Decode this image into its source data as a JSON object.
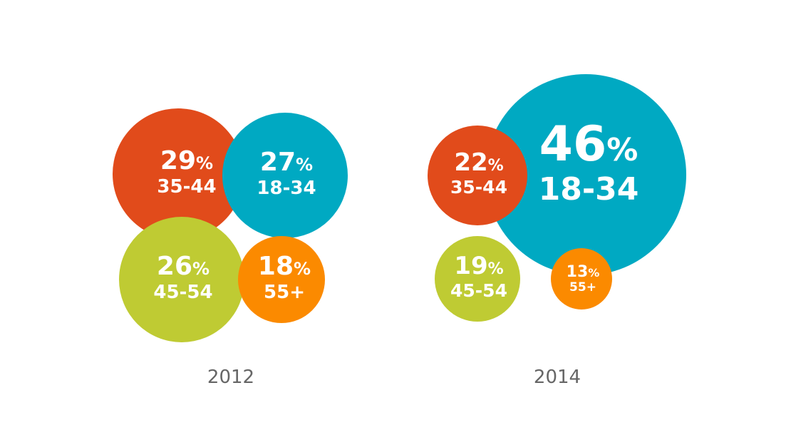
{
  "chart_data": {
    "type": "bubble",
    "panels": [
      {
        "year": "2012",
        "bubbles": [
          {
            "group": "35-44",
            "value": 29,
            "label": "29",
            "unit": "%",
            "color": "#E14B1B"
          },
          {
            "group": "18-34",
            "value": 27,
            "label": "27",
            "unit": "%",
            "color": "#00A9C2"
          },
          {
            "group": "45-54",
            "value": 26,
            "label": "26",
            "unit": "%",
            "color": "#BFCB33"
          },
          {
            "group": "55+",
            "value": 18,
            "label": "18",
            "unit": "%",
            "color": "#FB8A00"
          }
        ]
      },
      {
        "year": "2014",
        "bubbles": [
          {
            "group": "18-34",
            "value": 46,
            "label": "46",
            "unit": "%",
            "color": "#00A9C2"
          },
          {
            "group": "35-44",
            "value": 22,
            "label": "22",
            "unit": "%",
            "color": "#E14B1B"
          },
          {
            "group": "45-54",
            "value": 19,
            "label": "19",
            "unit": "%",
            "color": "#BFCB33"
          },
          {
            "group": "55+",
            "value": 13,
            "label": "13",
            "unit": "%",
            "color": "#FB8A00"
          }
        ]
      }
    ]
  }
}
